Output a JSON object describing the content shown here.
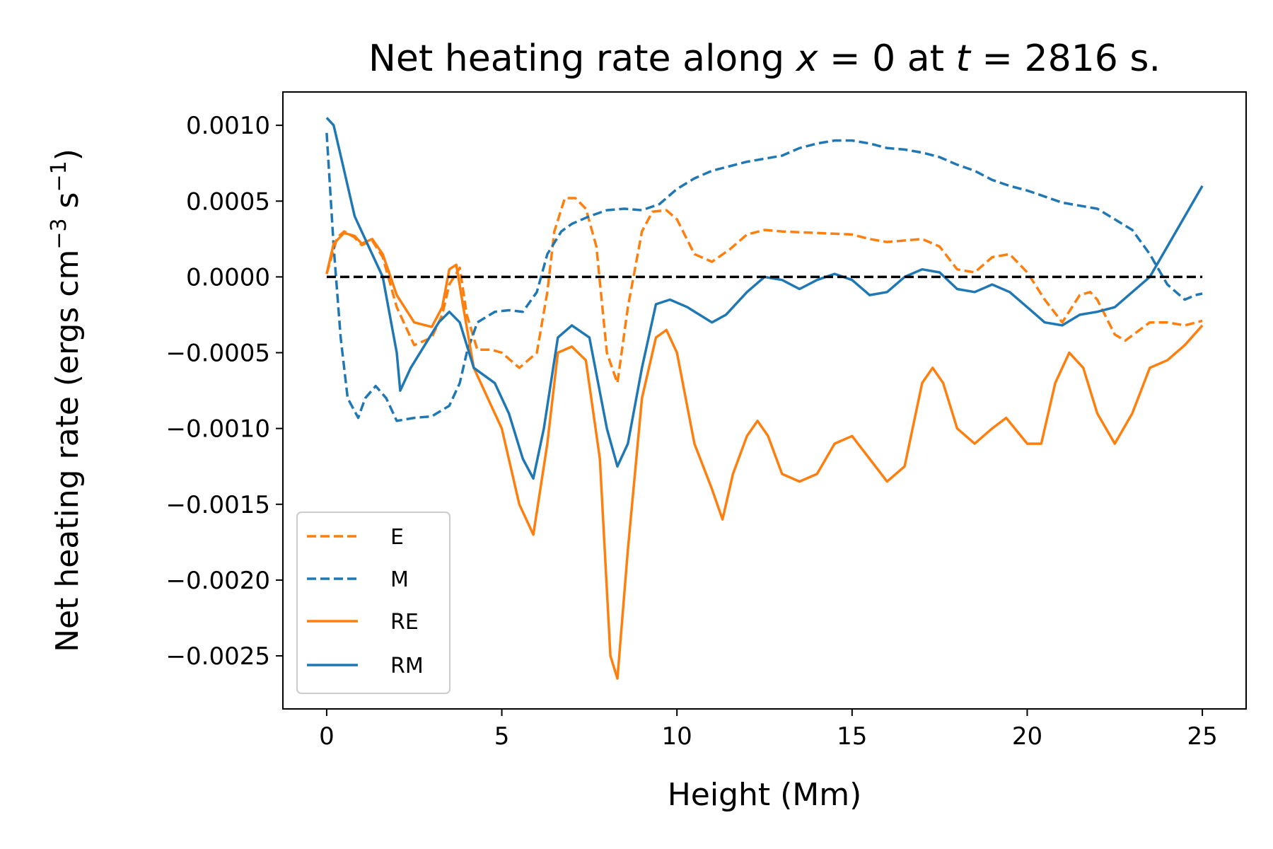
{
  "chart_data": {
    "type": "line",
    "title": "Net heating rate along x = 0 at t = 2816 s.",
    "title_parts": {
      "prefix": "Net heating rate along ",
      "var1": "x",
      "eq1": " = 0 at ",
      "var2": "t",
      "eq2": " = 2816 s."
    },
    "xlabel": "Height (Mm)",
    "ylabel": "Net heating rate (ergs cm",
    "ylabel_parts": {
      "base": "Net heating rate (ergs cm",
      "exp1": "−3",
      "mid": " s",
      "exp2": "−1",
      "end": ")"
    },
    "xlim": [
      -1.25,
      26.25
    ],
    "ylim": [
      -0.00285,
      0.00122
    ],
    "xticks": [
      0,
      5,
      10,
      15,
      20,
      25
    ],
    "xtick_labels": [
      "0",
      "5",
      "10",
      "15",
      "20",
      "25"
    ],
    "yticks": [
      0.001,
      0.0005,
      0.0,
      -0.0005,
      -0.001,
      -0.0015,
      -0.002,
      -0.0025
    ],
    "ytick_labels": [
      "0.0010",
      "0.0005",
      "0.0000",
      "−0.0005",
      "−0.0010",
      "−0.0015",
      "−0.0020",
      "−0.0025"
    ],
    "grid": false,
    "legend_position": "lower-left",
    "reference_line": {
      "y": 0,
      "color": "#000000",
      "style": "dashed"
    },
    "series": [
      {
        "name": "E",
        "color": "#ff7f0e",
        "dash": true,
        "points": [
          [
            0,
            2e-05
          ],
          [
            0.3,
            0.00026
          ],
          [
            0.5,
            0.0003
          ],
          [
            0.8,
            0.00026
          ],
          [
            1.0,
            0.00021
          ],
          [
            1.3,
            0.00024
          ],
          [
            1.6,
            0.00013
          ],
          [
            2.0,
            -0.0002
          ],
          [
            2.5,
            -0.00045
          ],
          [
            3.0,
            -0.0004
          ],
          [
            3.3,
            -0.00025
          ],
          [
            3.5,
            -5e-05
          ],
          [
            3.8,
            6e-05
          ],
          [
            4.0,
            -0.00025
          ],
          [
            4.3,
            -0.00048
          ],
          [
            4.7,
            -0.00048
          ],
          [
            5.0,
            -0.0005
          ],
          [
            5.5,
            -0.0006
          ],
          [
            6.0,
            -0.0005
          ],
          [
            6.3,
            -0.0001
          ],
          [
            6.5,
            0.0003
          ],
          [
            6.8,
            0.00052
          ],
          [
            7.1,
            0.00052
          ],
          [
            7.4,
            0.00045
          ],
          [
            7.7,
            0.0002
          ],
          [
            8.0,
            -0.0005
          ],
          [
            8.3,
            -0.0007
          ],
          [
            8.6,
            -0.0002
          ],
          [
            9.0,
            0.0003
          ],
          [
            9.3,
            0.00043
          ],
          [
            9.7,
            0.00044
          ],
          [
            10.0,
            0.00038
          ],
          [
            10.5,
            0.00015
          ],
          [
            11.0,
            0.0001
          ],
          [
            11.5,
            0.00018
          ],
          [
            12.0,
            0.00028
          ],
          [
            12.5,
            0.00031
          ],
          [
            13.0,
            0.0003
          ],
          [
            14.0,
            0.00029
          ],
          [
            15.0,
            0.00028
          ],
          [
            15.5,
            0.00025
          ],
          [
            16.0,
            0.00023
          ],
          [
            17.0,
            0.00025
          ],
          [
            17.5,
            0.0002
          ],
          [
            18.0,
            5e-05
          ],
          [
            18.5,
            3e-05
          ],
          [
            19.0,
            0.00013
          ],
          [
            19.5,
            0.00015
          ],
          [
            20.0,
            3e-05
          ],
          [
            20.5,
            -0.00015
          ],
          [
            21.0,
            -0.0003
          ],
          [
            21.5,
            -0.00012
          ],
          [
            21.8,
            -0.0001
          ],
          [
            22.0,
            -0.00015
          ],
          [
            22.5,
            -0.00038
          ],
          [
            22.8,
            -0.00042
          ],
          [
            23.5,
            -0.0003
          ],
          [
            24.0,
            -0.0003
          ],
          [
            24.5,
            -0.00032
          ],
          [
            25.0,
            -0.00029
          ]
        ]
      },
      {
        "name": "M",
        "color": "#1f77b4",
        "dash": true,
        "points": [
          [
            0,
            0.00095
          ],
          [
            0.2,
            0.0002
          ],
          [
            0.4,
            -0.0004
          ],
          [
            0.6,
            -0.0008
          ],
          [
            0.9,
            -0.00093
          ],
          [
            1.1,
            -0.0008
          ],
          [
            1.4,
            -0.00072
          ],
          [
            1.7,
            -0.0008
          ],
          [
            2.0,
            -0.00095
          ],
          [
            2.5,
            -0.00093
          ],
          [
            3.0,
            -0.00092
          ],
          [
            3.5,
            -0.00085
          ],
          [
            3.8,
            -0.0007
          ],
          [
            4.0,
            -0.0005
          ],
          [
            4.3,
            -0.0003
          ],
          [
            4.8,
            -0.00023
          ],
          [
            5.2,
            -0.00022
          ],
          [
            5.6,
            -0.00023
          ],
          [
            6.0,
            -0.0001
          ],
          [
            6.3,
            0.00015
          ],
          [
            6.7,
            0.0003
          ],
          [
            7.0,
            0.00035
          ],
          [
            7.5,
            0.0004
          ],
          [
            8.0,
            0.00044
          ],
          [
            8.5,
            0.00045
          ],
          [
            9.0,
            0.00044
          ],
          [
            9.5,
            0.00048
          ],
          [
            10.0,
            0.00058
          ],
          [
            10.5,
            0.00065
          ],
          [
            11.0,
            0.0007
          ],
          [
            11.5,
            0.00073
          ],
          [
            12.0,
            0.00076
          ],
          [
            12.5,
            0.00078
          ],
          [
            13.0,
            0.0008
          ],
          [
            13.5,
            0.00085
          ],
          [
            14.0,
            0.00088
          ],
          [
            14.5,
            0.0009
          ],
          [
            15.0,
            0.0009
          ],
          [
            15.5,
            0.00088
          ],
          [
            16.0,
            0.00085
          ],
          [
            16.5,
            0.00084
          ],
          [
            17.0,
            0.00082
          ],
          [
            17.5,
            0.00079
          ],
          [
            18.0,
            0.00074
          ],
          [
            18.5,
            0.0007
          ],
          [
            19.0,
            0.00064
          ],
          [
            19.5,
            0.0006
          ],
          [
            20.0,
            0.00057
          ],
          [
            20.5,
            0.00053
          ],
          [
            21.0,
            0.00049
          ],
          [
            21.5,
            0.00047
          ],
          [
            22.0,
            0.00045
          ],
          [
            22.5,
            0.00038
          ],
          [
            23.0,
            0.00031
          ],
          [
            23.5,
            0.00015
          ],
          [
            24.0,
            -5e-05
          ],
          [
            24.5,
            -0.00015
          ],
          [
            24.8,
            -0.00012
          ],
          [
            25.0,
            -0.00011
          ]
        ]
      },
      {
        "name": "RE",
        "color": "#ff7f0e",
        "dash": false,
        "points": [
          [
            0,
            2e-05
          ],
          [
            0.2,
            0.00022
          ],
          [
            0.5,
            0.00029
          ],
          [
            0.8,
            0.00027
          ],
          [
            1.0,
            0.00022
          ],
          [
            1.3,
            0.00025
          ],
          [
            1.6,
            0.00015
          ],
          [
            2.0,
            -0.00012
          ],
          [
            2.5,
            -0.0003
          ],
          [
            3.0,
            -0.00033
          ],
          [
            3.3,
            -0.0002
          ],
          [
            3.5,
            5e-05
          ],
          [
            3.7,
            8e-05
          ],
          [
            3.9,
            -0.0002
          ],
          [
            4.2,
            -0.0006
          ],
          [
            4.6,
            -0.0008
          ],
          [
            5.0,
            -0.001
          ],
          [
            5.5,
            -0.0015
          ],
          [
            5.9,
            -0.0017
          ],
          [
            6.3,
            -0.0011
          ],
          [
            6.6,
            -0.0005
          ],
          [
            7.0,
            -0.00046
          ],
          [
            7.4,
            -0.00055
          ],
          [
            7.8,
            -0.0012
          ],
          [
            8.1,
            -0.0025
          ],
          [
            8.3,
            -0.00265
          ],
          [
            8.6,
            -0.0018
          ],
          [
            9.0,
            -0.0008
          ],
          [
            9.4,
            -0.0004
          ],
          [
            9.7,
            -0.00035
          ],
          [
            10.0,
            -0.0005
          ],
          [
            10.5,
            -0.0011
          ],
          [
            11.0,
            -0.0014
          ],
          [
            11.3,
            -0.0016
          ],
          [
            11.6,
            -0.0013
          ],
          [
            12.0,
            -0.00105
          ],
          [
            12.3,
            -0.00095
          ],
          [
            12.6,
            -0.00105
          ],
          [
            13.0,
            -0.0013
          ],
          [
            13.5,
            -0.00135
          ],
          [
            14.0,
            -0.0013
          ],
          [
            14.5,
            -0.0011
          ],
          [
            15.0,
            -0.00105
          ],
          [
            15.5,
            -0.0012
          ],
          [
            16.0,
            -0.00135
          ],
          [
            16.5,
            -0.00125
          ],
          [
            17.0,
            -0.0007
          ],
          [
            17.3,
            -0.0006
          ],
          [
            17.6,
            -0.0007
          ],
          [
            18.0,
            -0.001
          ],
          [
            18.5,
            -0.0011
          ],
          [
            19.0,
            -0.001
          ],
          [
            19.4,
            -0.00093
          ],
          [
            20.0,
            -0.0011
          ],
          [
            20.4,
            -0.0011
          ],
          [
            20.8,
            -0.0007
          ],
          [
            21.2,
            -0.0005
          ],
          [
            21.6,
            -0.0006
          ],
          [
            22.0,
            -0.0009
          ],
          [
            22.5,
            -0.0011
          ],
          [
            23.0,
            -0.0009
          ],
          [
            23.5,
            -0.0006
          ],
          [
            24.0,
            -0.00055
          ],
          [
            24.5,
            -0.00045
          ],
          [
            25.0,
            -0.00032
          ]
        ]
      },
      {
        "name": "RM",
        "color": "#1f77b4",
        "dash": false,
        "points": [
          [
            0,
            0.00105
          ],
          [
            0.2,
            0.001
          ],
          [
            0.5,
            0.0007
          ],
          [
            0.8,
            0.0004
          ],
          [
            1.2,
            0.0002
          ],
          [
            1.6,
            0.0
          ],
          [
            2.0,
            -0.0005
          ],
          [
            2.1,
            -0.00075
          ],
          [
            2.4,
            -0.0006
          ],
          [
            2.8,
            -0.00045
          ],
          [
            3.2,
            -0.0003
          ],
          [
            3.5,
            -0.00023
          ],
          [
            3.8,
            -0.0003
          ],
          [
            4.2,
            -0.0006
          ],
          [
            4.8,
            -0.0007
          ],
          [
            5.2,
            -0.0009
          ],
          [
            5.6,
            -0.0012
          ],
          [
            5.9,
            -0.00133
          ],
          [
            6.2,
            -0.001
          ],
          [
            6.6,
            -0.0004
          ],
          [
            7.0,
            -0.00032
          ],
          [
            7.5,
            -0.0004
          ],
          [
            8.0,
            -0.001
          ],
          [
            8.3,
            -0.00125
          ],
          [
            8.6,
            -0.0011
          ],
          [
            9.0,
            -0.0006
          ],
          [
            9.4,
            -0.00018
          ],
          [
            9.8,
            -0.00015
          ],
          [
            10.3,
            -0.0002
          ],
          [
            11.0,
            -0.0003
          ],
          [
            11.4,
            -0.00025
          ],
          [
            12.0,
            -0.0001
          ],
          [
            12.5,
            0.0
          ],
          [
            13.0,
            -2e-05
          ],
          [
            13.5,
            -8e-05
          ],
          [
            14.0,
            -2e-05
          ],
          [
            14.5,
            2e-05
          ],
          [
            15.0,
            -2e-05
          ],
          [
            15.5,
            -0.00012
          ],
          [
            16.0,
            -0.0001
          ],
          [
            16.5,
            0.0
          ],
          [
            17.0,
            5e-05
          ],
          [
            17.5,
            3e-05
          ],
          [
            18.0,
            -8e-05
          ],
          [
            18.5,
            -0.0001
          ],
          [
            19.0,
            -5e-05
          ],
          [
            19.5,
            -0.0001
          ],
          [
            20.0,
            -0.0002
          ],
          [
            20.5,
            -0.0003
          ],
          [
            21.0,
            -0.00032
          ],
          [
            21.5,
            -0.00025
          ],
          [
            22.0,
            -0.00023
          ],
          [
            22.5,
            -0.0002
          ],
          [
            23.0,
            -0.0001
          ],
          [
            23.5,
            0.0
          ],
          [
            24.0,
            0.0002
          ],
          [
            24.5,
            0.0004
          ],
          [
            25.0,
            0.0006
          ]
        ]
      }
    ]
  }
}
